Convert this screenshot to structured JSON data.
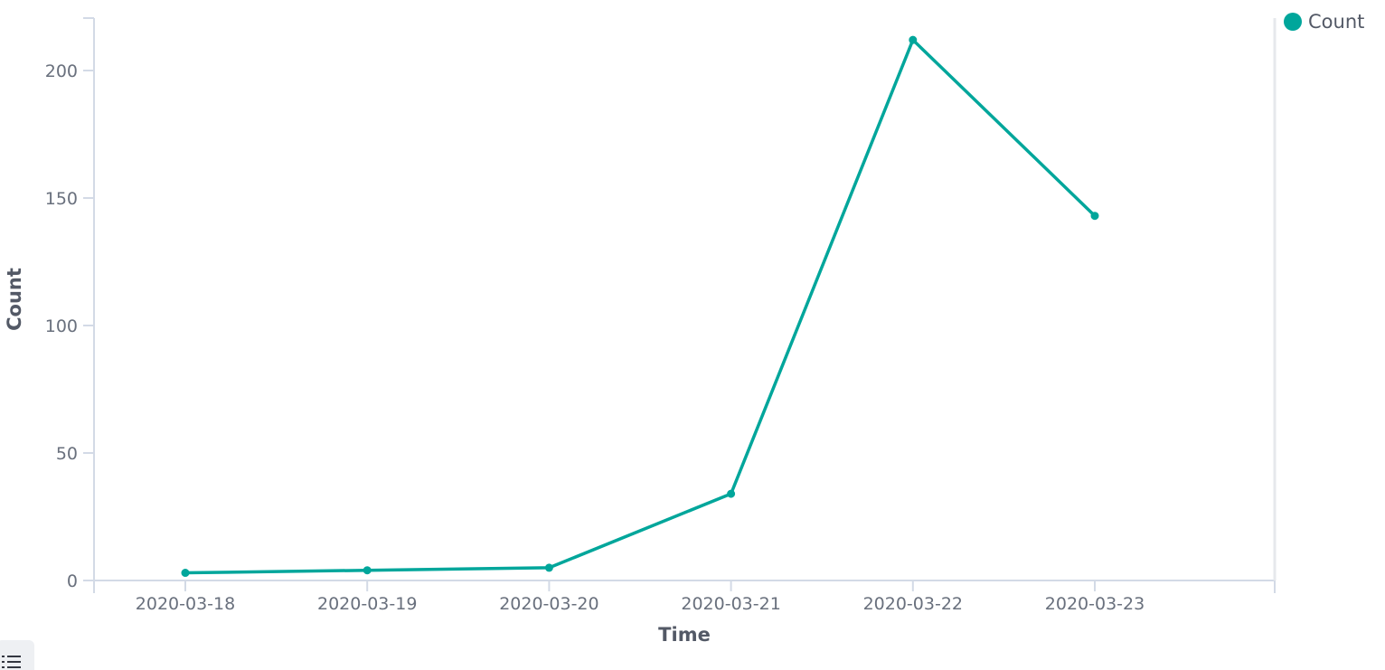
{
  "chart_data": {
    "type": "line",
    "title": "",
    "xlabel": "Time",
    "ylabel": "Count",
    "categories": [
      "2020-03-18",
      "2020-03-19",
      "2020-03-20",
      "2020-03-21",
      "2020-03-22",
      "2020-03-23"
    ],
    "series": [
      {
        "name": "Count",
        "color": "#00a69b",
        "values": [
          3,
          4,
          5,
          34,
          212,
          143
        ]
      }
    ],
    "yticks": [
      0,
      50,
      100,
      150,
      200
    ],
    "ylim": [
      0,
      220
    ],
    "grid": false,
    "legend_position": "top-right"
  },
  "legend": {
    "label": "Count",
    "color": "#00a69b",
    "toggle_icon": "list-icon"
  }
}
